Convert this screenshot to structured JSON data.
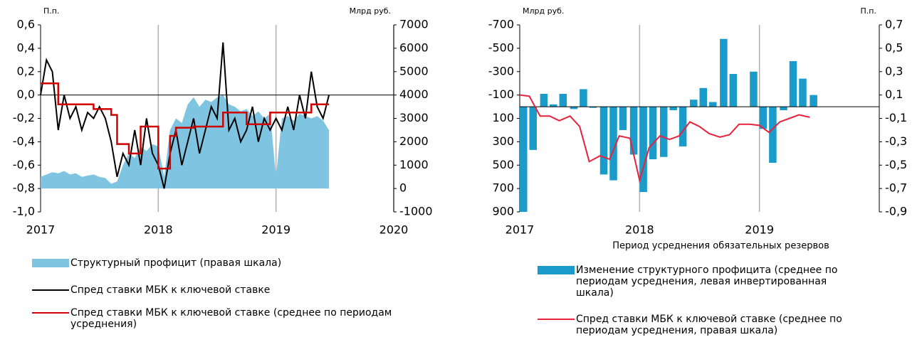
{
  "chart_data": [
    {
      "type": "line",
      "ylabel": "П.п.",
      "y2label": "Млрд руб.",
      "xlim": [
        2017,
        2020
      ],
      "xticks": [
        2017,
        2018,
        2019,
        2020
      ],
      "ylim": [
        -1.0,
        0.6
      ],
      "yticks": [
        {
          "value": 0.6,
          "label": "0,6"
        },
        {
          "value": 0.4,
          "label": "0,4"
        },
        {
          "value": 0.2,
          "label": "0,2"
        },
        {
          "value": 0,
          "label": "0,0"
        },
        {
          "value": -0.2,
          "label": "-0,2"
        },
        {
          "value": -0.4,
          "label": "-0,4"
        },
        {
          "value": -0.6,
          "label": "-0,6"
        },
        {
          "value": -0.8,
          "label": "-0,8"
        },
        {
          "value": -1.0,
          "label": "-1,0"
        }
      ],
      "y2lim": [
        -1000,
        7000
      ],
      "y2ticks": [
        7000,
        6000,
        5000,
        4000,
        3000,
        2000,
        1000,
        0,
        -1000
      ],
      "x": [
        2017.0,
        2017.05,
        2017.1,
        2017.15,
        2017.2,
        2017.25,
        2017.3,
        2017.35,
        2017.4,
        2017.45,
        2017.5,
        2017.55,
        2017.6,
        2017.65,
        2017.7,
        2017.75,
        2017.8,
        2017.85,
        2017.9,
        2017.95,
        2018.0,
        2018.05,
        2018.1,
        2018.15,
        2018.2,
        2018.25,
        2018.3,
        2018.35,
        2018.4,
        2018.45,
        2018.5,
        2018.55,
        2018.6,
        2018.65,
        2018.7,
        2018.75,
        2018.8,
        2018.85,
        2018.9,
        2018.95,
        2019.0,
        2019.05,
        2019.1,
        2019.15,
        2019.2,
        2019.25,
        2019.3,
        2019.35,
        2019.4,
        2019.45
      ],
      "series": [
        {
          "name": "Структурный профицит (правая шкала)",
          "kind": "area",
          "axis": "y2",
          "color": "#7fc4e0",
          "values": [
            500,
            600,
            700,
            650,
            750,
            600,
            650,
            500,
            550,
            600,
            500,
            450,
            200,
            300,
            1000,
            1500,
            1300,
            1800,
            1600,
            1900,
            1800,
            500,
            2500,
            3000,
            2800,
            3600,
            3900,
            3500,
            3800,
            3700,
            3900,
            4000,
            3600,
            3500,
            3300,
            3400,
            3100,
            3300,
            3000,
            3200,
            500,
            3000,
            3100,
            2900,
            3200,
            3100,
            3000,
            3100,
            2900,
            2500
          ]
        },
        {
          "name": "Спред ставки МБК к ключевой ставке",
          "kind": "line",
          "axis": "y",
          "color": "#000000",
          "values": [
            0.0,
            0.3,
            0.2,
            -0.3,
            0.0,
            -0.2,
            -0.1,
            -0.3,
            -0.15,
            -0.2,
            -0.1,
            -0.2,
            -0.4,
            -0.7,
            -0.5,
            -0.6,
            -0.3,
            -0.6,
            -0.2,
            -0.5,
            -0.6,
            -0.8,
            -0.5,
            -0.3,
            -0.6,
            -0.4,
            -0.2,
            -0.5,
            -0.3,
            -0.1,
            -0.2,
            0.45,
            -0.3,
            -0.2,
            -0.4,
            -0.3,
            -0.1,
            -0.4,
            -0.2,
            -0.3,
            -0.2,
            -0.3,
            -0.1,
            -0.3,
            0.0,
            -0.2,
            0.2,
            -0.1,
            -0.2,
            0.0
          ]
        },
        {
          "name": "Спред ставки МБК к ключевой ставке (среднее по периодам усреднения)",
          "kind": "step",
          "axis": "y",
          "color": "#d00000",
          "values": [
            0.1,
            0.1,
            0.1,
            -0.08,
            -0.08,
            -0.08,
            -0.08,
            -0.08,
            -0.08,
            -0.12,
            -0.12,
            -0.12,
            -0.17,
            -0.42,
            -0.42,
            -0.5,
            -0.5,
            -0.27,
            -0.27,
            -0.27,
            -0.63,
            -0.63,
            -0.35,
            -0.28,
            -0.28,
            -0.28,
            -0.27,
            -0.27,
            -0.27,
            -0.27,
            -0.27,
            -0.15,
            -0.15,
            -0.15,
            -0.15,
            -0.25,
            -0.25,
            -0.25,
            -0.25,
            -0.15,
            -0.15,
            -0.15,
            -0.15,
            -0.15,
            -0.15,
            -0.15,
            -0.08,
            -0.08,
            -0.08,
            -0.08
          ]
        }
      ]
    },
    {
      "type": "bar",
      "ylabel": "Млрд руб.",
      "y2label": "П.п.",
      "xlabel": "Период усреднения обязательных резервов",
      "xlim": [
        2017,
        2020
      ],
      "xticks": [
        2017,
        2018,
        2019
      ],
      "ylim": [
        900,
        -700
      ],
      "yticks": [
        -700,
        -500,
        -300,
        -100,
        100,
        300,
        500,
        700,
        900
      ],
      "y2lim": [
        -0.9,
        0.7
      ],
      "y2ticks": [
        {
          "value": 0.7,
          "label": "0,7"
        },
        {
          "value": 0.5,
          "label": "0,5"
        },
        {
          "value": 0.3,
          "label": "0,3"
        },
        {
          "value": 0.1,
          "label": "0,1"
        },
        {
          "value": -0.1,
          "label": "-0,1"
        },
        {
          "value": -0.3,
          "label": "-0,3"
        },
        {
          "value": -0.5,
          "label": "-0,5"
        },
        {
          "value": -0.7,
          "label": "-0,7"
        },
        {
          "value": -0.9,
          "label": "-0,9"
        }
      ],
      "x": [
        2017.0,
        2017.08,
        2017.17,
        2017.25,
        2017.33,
        2017.42,
        2017.5,
        2017.58,
        2017.67,
        2017.75,
        2017.83,
        2017.92,
        2018.0,
        2018.08,
        2018.17,
        2018.25,
        2018.33,
        2018.42,
        2018.5,
        2018.58,
        2018.67,
        2018.75,
        2018.83,
        2018.92,
        2019.0,
        2019.08,
        2019.17,
        2019.25,
        2019.33,
        2019.42
      ],
      "series": [
        {
          "name": "Изменение структурного профицита (среднее по периодам усреднения, левая инвертированная шкала)",
          "kind": "bar",
          "axis": "y",
          "color": "#1a9bc9",
          "values": [
            900,
            370,
            -110,
            -20,
            -110,
            20,
            -150,
            10,
            580,
            630,
            200,
            410,
            730,
            450,
            430,
            30,
            340,
            -60,
            -160,
            -40,
            -580,
            -280,
            0,
            -300,
            190,
            480,
            30,
            -390,
            -240,
            -100
          ]
        },
        {
          "name": "Спред ставки МБК к ключевой ставке (среднее по периодам усреднения, правая шкала)",
          "kind": "line",
          "axis": "y2",
          "color": "#e8213c",
          "values": [
            0.1,
            0.09,
            -0.08,
            -0.08,
            -0.12,
            -0.08,
            -0.17,
            -0.47,
            -0.42,
            -0.45,
            -0.25,
            -0.27,
            -0.63,
            -0.35,
            -0.25,
            -0.28,
            -0.25,
            -0.13,
            -0.17,
            -0.23,
            -0.26,
            -0.24,
            -0.15,
            -0.15,
            -0.16,
            -0.22,
            -0.13,
            -0.1,
            -0.07,
            -0.09
          ]
        }
      ]
    }
  ]
}
